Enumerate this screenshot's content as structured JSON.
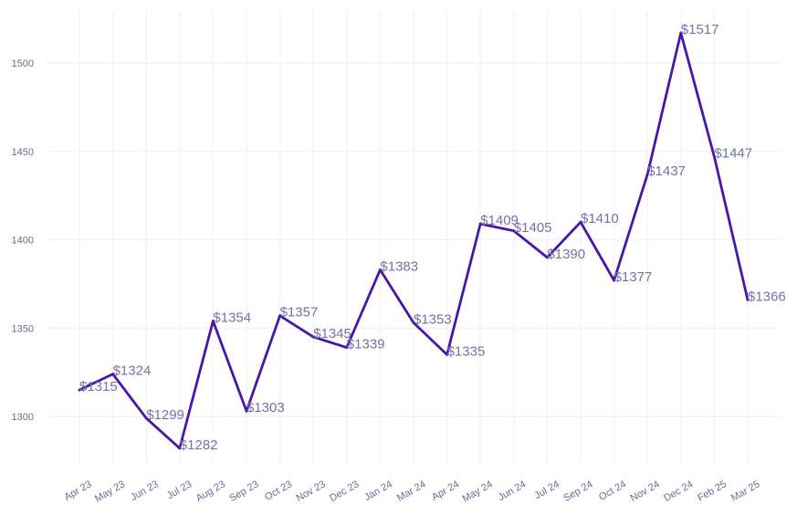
{
  "chart_data": {
    "type": "line",
    "title": "",
    "xlabel": "",
    "ylabel": "",
    "categories": [
      "Apr 23",
      "May 23",
      "Jun 23",
      "Jul 23",
      "Aug 23",
      "Sep 23",
      "Oct 23",
      "Nov 23",
      "Dec 23",
      "Jan 24",
      "Mar 24",
      "Apr 24",
      "May 24",
      "Jun 24",
      "Jul 24",
      "Sep 24",
      "Oct 24",
      "Nov 24",
      "Dec 24",
      "Feb 25",
      "Mar 25"
    ],
    "series": [
      {
        "values": [
          1315,
          1324,
          1299,
          1282,
          1354,
          1303,
          1357,
          1345,
          1339,
          1383,
          1353,
          1335,
          1409,
          1405,
          1390,
          1410,
          1377,
          1437,
          1517,
          1447,
          1366
        ],
        "data_labels": [
          "$1315",
          "$1324",
          "$1299",
          "$1282",
          "$1354",
          "$1303",
          "$1357",
          "$1345",
          "$1339",
          "$1383",
          "$1353",
          "$1335",
          "$1409",
          "$1405",
          "$1390",
          "$1410",
          "$1377",
          "$1437",
          "$1517",
          "$1447",
          "$1366"
        ]
      }
    ],
    "yticks": [
      1300,
      1350,
      1400,
      1450,
      1500
    ],
    "ytick_labels": [
      "1300",
      "1350",
      "1400",
      "1450",
      "1500"
    ],
    "ylim": [
      1272,
      1522
    ],
    "grid": true,
    "legend": "none",
    "colors": {
      "line": "#4a16a8",
      "label": "#7373a8",
      "tick": "#6a6a9e",
      "grid": "#f4f4f7"
    }
  }
}
